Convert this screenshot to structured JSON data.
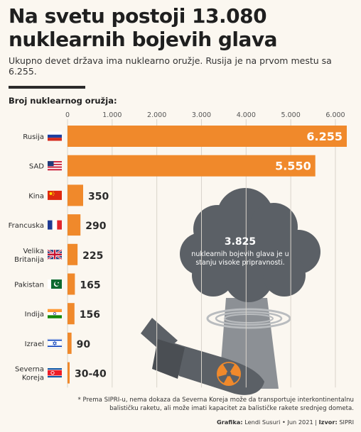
{
  "header": {
    "title_line1": "Na svetu postoji 13.080",
    "title_line2": "nuklearnih bojevih glava",
    "subtitle": "Ukupno devet država ima nuklearno oružje. Rusija je na prvom mestu sa 6.255."
  },
  "chart_data": {
    "type": "bar",
    "orientation": "horizontal",
    "axis_title": "Broj nuklearnog oružja:",
    "xlim": [
      0,
      6255
    ],
    "ticks": [
      0,
      1000,
      2000,
      3000,
      4000,
      5000,
      6000
    ],
    "tick_labels": [
      "0",
      "1.000",
      "2.000",
      "3.000",
      "4.000",
      "5.000",
      "6.000"
    ],
    "categories": [
      {
        "name": "Rusija",
        "value": 6255,
        "label": "6.255",
        "flag": "russia-flag"
      },
      {
        "name": "SAD",
        "value": 5550,
        "label": "5.550",
        "flag": "usa-flag"
      },
      {
        "name": "Kina",
        "value": 350,
        "label": "350",
        "flag": "china-flag"
      },
      {
        "name": "Francuska",
        "value": 290,
        "label": "290",
        "flag": "france-flag"
      },
      {
        "name": "Velika Britanija",
        "value": 225,
        "label": "225",
        "flag": "uk-flag"
      },
      {
        "name": "Pakistan",
        "value": 165,
        "label": "165",
        "flag": "pakistan-flag"
      },
      {
        "name": "Indija",
        "value": 156,
        "label": "156",
        "flag": "india-flag"
      },
      {
        "name": "Izrael",
        "value": 90,
        "label": "90",
        "flag": "israel-flag"
      },
      {
        "name": "Severna Koreja",
        "value": 35,
        "label": "30-40",
        "flag": "north-korea-flag"
      }
    ],
    "bar_color": "#f0892b",
    "grid": true
  },
  "callout": {
    "number": "3.825",
    "text": "nuklearnih bojevih glava je u stanju visoke pripravnosti."
  },
  "footnote": "* Prema SIPRI-u, nema dokaza da Severna Koreja može da transportuje interkontinentalnu balističku raketu, ali može imati kapacitet za balističke rakete srednjeg dometa.",
  "credits": {
    "grafika_label": "Grafika:",
    "grafika_value": "Lendi Susuri • Jun 2021",
    "izvor_label": "Izvor:",
    "izvor_value": "SIPRI"
  },
  "colors": {
    "bar": "#f0892b",
    "cloud": "#5b6066",
    "stem": "#8c9095",
    "background": "#fbf7f0"
  }
}
